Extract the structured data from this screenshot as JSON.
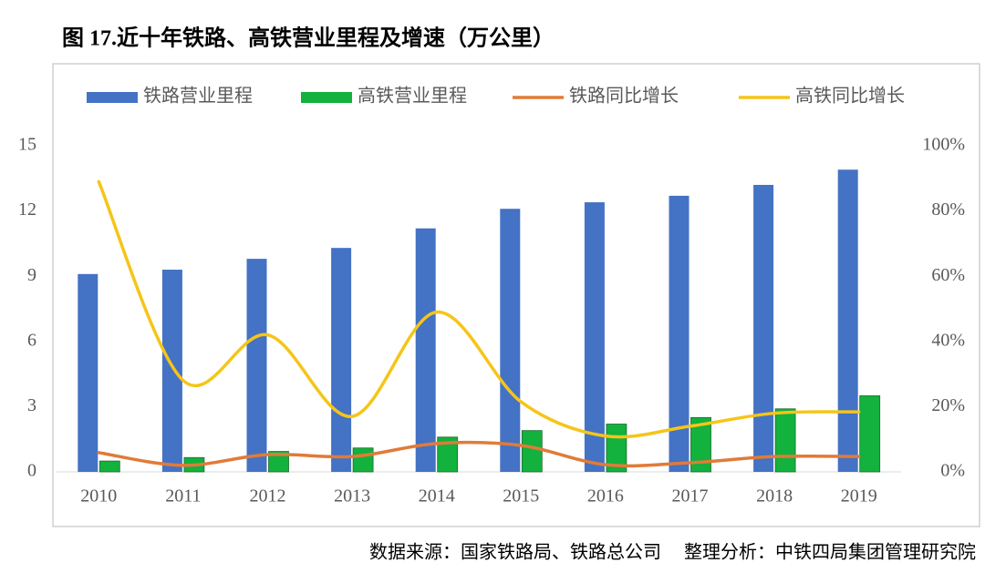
{
  "chart_data": {
    "type": "bar-line",
    "title": "图 17.近十年铁路、高铁营业里程及增速（万公里）",
    "source": "数据来源：国家铁路局、铁路总公司　 整理分析：中铁四局集团管理研究院",
    "categories": [
      "2010",
      "2011",
      "2012",
      "2013",
      "2014",
      "2015",
      "2016",
      "2017",
      "2018",
      "2019"
    ],
    "series": [
      {
        "name": "铁路营业里程",
        "type": "bar",
        "color": "#4472c4",
        "values": [
          9.1,
          9.3,
          9.8,
          10.3,
          11.2,
          12.1,
          12.4,
          12.7,
          13.2,
          13.9
        ]
      },
      {
        "name": "高铁营业里程",
        "type": "bar",
        "color": "#13b13d",
        "values": [
          0.5,
          0.66,
          0.94,
          1.1,
          1.6,
          1.9,
          2.2,
          2.5,
          2.9,
          3.5
        ]
      },
      {
        "name": "铁路同比增长",
        "type": "line",
        "axis": "y2",
        "color": "#e07b39",
        "values": [
          5.9,
          2,
          5.3,
          4.7,
          8.7,
          8.1,
          2.2,
          2.8,
          4.7,
          4.7
        ]
      },
      {
        "name": "高铁同比增长",
        "type": "line",
        "axis": "y2",
        "color": "#f5c518",
        "values": [
          89,
          28,
          42,
          17,
          49,
          21.5,
          11,
          14,
          18,
          18.4
        ]
      }
    ],
    "ylim": [
      0,
      15
    ],
    "yticks": [
      0,
      3,
      6,
      9,
      12,
      15
    ],
    "y2lim": [
      0,
      100
    ],
    "y2ticks": [
      {
        "value": 0,
        "label": "0%"
      },
      {
        "value": 20,
        "label": "20%"
      },
      {
        "value": 40,
        "label": "40%"
      },
      {
        "value": 60,
        "label": "60%"
      },
      {
        "value": 80,
        "label": "80%"
      },
      {
        "value": 100,
        "label": "100%"
      }
    ],
    "legend": "top",
    "grid": false
  }
}
